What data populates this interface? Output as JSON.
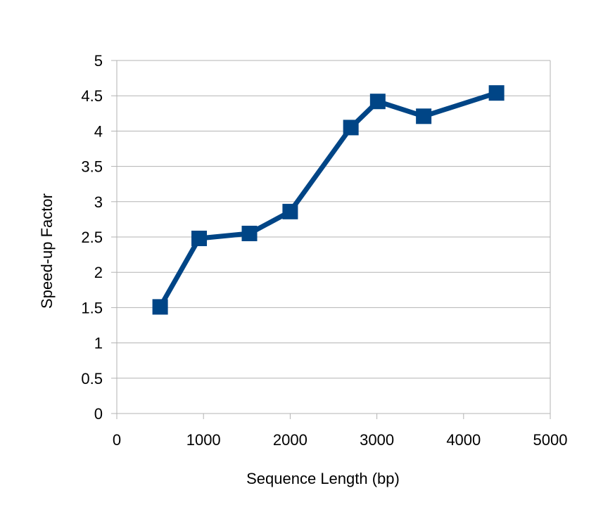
{
  "chart_data": {
    "type": "line",
    "title": "",
    "xlabel": "Sequence Length (bp)",
    "ylabel": "Speed-up Factor",
    "xlim": [
      0,
      5000
    ],
    "ylim": [
      0,
      5
    ],
    "x_ticks": [
      "0",
      "1000",
      "2000",
      "3000",
      "4000",
      "5000"
    ],
    "y_ticks": [
      "0",
      "0.5",
      "1",
      "1.5",
      "2",
      "2.5",
      "3",
      "3.5",
      "4",
      "4.5",
      "5"
    ],
    "grid": "horizontal",
    "legend": "none",
    "marker": "square",
    "color": "#004586",
    "series": [
      {
        "x": [
          500,
          950,
          1530,
          2000,
          2700,
          3010,
          3540,
          4380
        ],
        "y": [
          1.51,
          2.48,
          2.55,
          2.86,
          4.05,
          4.42,
          4.21,
          4.54
        ]
      }
    ]
  }
}
